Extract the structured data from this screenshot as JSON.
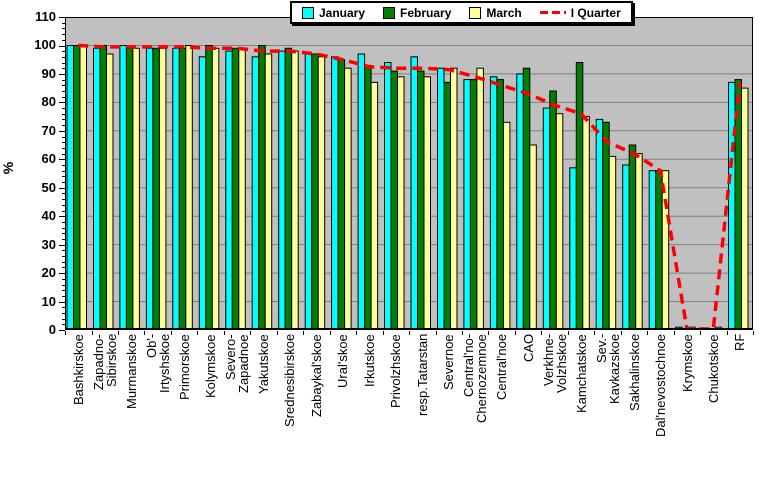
{
  "chart_data": {
    "type": "bar",
    "title": "",
    "ylabel": "%",
    "ylim": [
      0,
      110
    ],
    "y_step": 10,
    "y_ticks": [
      "0",
      "10",
      "20",
      "30",
      "40",
      "50",
      "60",
      "70",
      "80",
      "90",
      "100",
      "110"
    ],
    "plot_bg": "#C0C0C0",
    "grid_color": "#808080",
    "legend_position": "top-center",
    "categories": [
      "Bashkirskoe",
      "Zapadno-\nSibirskoe",
      "Murmanskoe",
      "Ob'-\nIrtyshskoe",
      "Primorskoe",
      "Kolymskoe",
      "Severo-\nZapadnoe",
      "Yakutskoe",
      "Srednesibirskoe",
      "Zabaykal'skoe",
      "Ural'skoe",
      "Irkutskoe",
      "Privolzhskoe",
      "resp.Tatarstan",
      "Severnoe",
      "Central'no-\nChernozemnoe",
      "Central'noe",
      "CAO",
      "Verkhne-\nVolzhskoe",
      "Kamchatskoe",
      "Sev.-\nKavkazskoe",
      "Sakhalinskoe",
      "Dal'nevostochnoe",
      "Krymskoe",
      "Chukotskoe",
      "RF"
    ],
    "series": [
      {
        "name": "January",
        "color": "#00FFFF",
        "values": [
          100,
          99,
          100,
          99,
          99,
          96,
          98,
          96,
          98,
          97,
          96,
          97,
          94,
          96,
          92,
          88,
          89,
          90,
          78,
          57,
          74,
          58,
          56,
          1,
          0,
          87
        ]
      },
      {
        "name": "February",
        "color": "#008000",
        "values": [
          100,
          100,
          99,
          99,
          99,
          100,
          99,
          100,
          99,
          97,
          95,
          93,
          91,
          91,
          87,
          88,
          88,
          92,
          84,
          94,
          73,
          65,
          56,
          0,
          0,
          88
        ]
      },
      {
        "name": "March",
        "color": "#FFFF99",
        "values": [
          100,
          97,
          99,
          99,
          100,
          99,
          99,
          97,
          98,
          96,
          92,
          87,
          89,
          89,
          92,
          92,
          73,
          65,
          76,
          75,
          61,
          62,
          56,
          1,
          1,
          85
        ]
      }
    ],
    "line": {
      "name": "I Quarter",
      "color": "#FF0000",
      "style": "dashed",
      "values": [
        100,
        99.5,
        99.5,
        99.5,
        99.5,
        99,
        99,
        98,
        98,
        97,
        95,
        92.5,
        92,
        92,
        91.5,
        89,
        86,
        83,
        79,
        76,
        66,
        62,
        56,
        0.5,
        0.3,
        87
      ]
    }
  }
}
